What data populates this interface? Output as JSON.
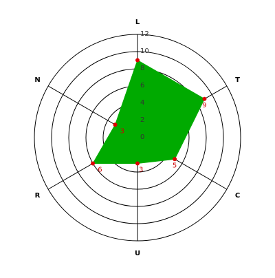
{
  "chart_data": {
    "type": "radar",
    "categories": [
      "L",
      "T",
      "C",
      "U",
      "R",
      "N"
    ],
    "values": [
      9,
      9,
      5,
      3,
      6,
      3
    ],
    "labeled_points": [
      false,
      true,
      true,
      true,
      true,
      true
    ],
    "color": "#00aa00",
    "point_color": "#dd0000",
    "label_color": "#cc0000",
    "ylim": [
      0,
      12
    ],
    "yticks": [
      0,
      2,
      4,
      6,
      8,
      10,
      12
    ],
    "grid": true
  }
}
